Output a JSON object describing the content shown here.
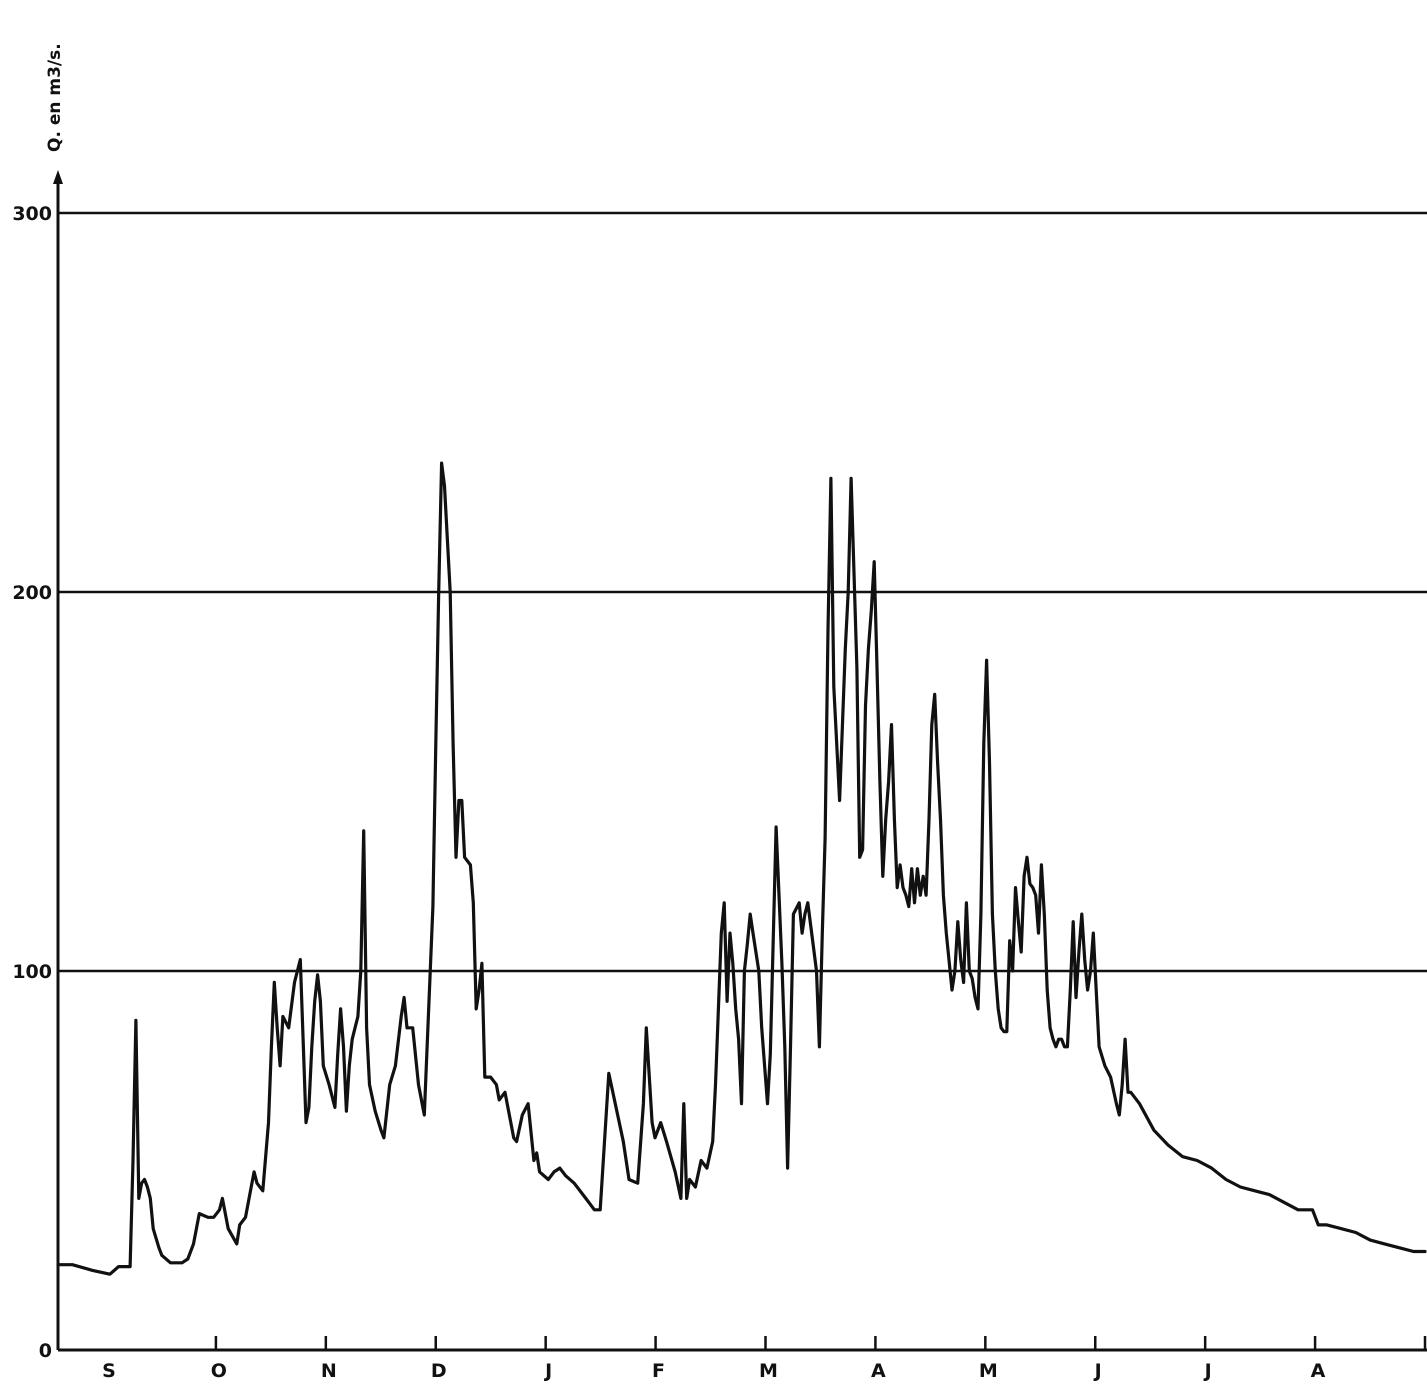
{
  "chart_data": {
    "type": "line",
    "title": "",
    "ylabel": "Q. en m3/s.",
    "xlabel": "",
    "ylim": [
      0,
      300
    ],
    "yticks": [
      0,
      100,
      200,
      300
    ],
    "grid": true,
    "months": [
      "S",
      "O",
      "N",
      "D",
      "J",
      "F",
      "M",
      "A",
      "M",
      "J",
      "J",
      "A"
    ],
    "x_unit": "day of hydrological year (from 1 September)",
    "series": [
      {
        "name": "",
        "color": "#111111",
        "points": [
          [
            0,
            22.5
          ],
          [
            5,
            22.5
          ],
          [
            12,
            21
          ],
          [
            18,
            20
          ],
          [
            21,
            22
          ],
          [
            23,
            22
          ],
          [
            25,
            22
          ],
          [
            26,
            50
          ],
          [
            27,
            87
          ],
          [
            28,
            40
          ],
          [
            29,
            44
          ],
          [
            30,
            45
          ],
          [
            31,
            43
          ],
          [
            32,
            40
          ],
          [
            33,
            32
          ],
          [
            35,
            27
          ],
          [
            36,
            25
          ],
          [
            39,
            23
          ],
          [
            43,
            23
          ],
          [
            45,
            24
          ],
          [
            47,
            28
          ],
          [
            49,
            36
          ],
          [
            52,
            35
          ],
          [
            54,
            35
          ],
          [
            56,
            37
          ],
          [
            57,
            40
          ],
          [
            59,
            32
          ],
          [
            62,
            28
          ],
          [
            63,
            33
          ],
          [
            65,
            35
          ],
          [
            67,
            43
          ],
          [
            68,
            47
          ],
          [
            69,
            44
          ],
          [
            71,
            42
          ],
          [
            73,
            60
          ],
          [
            74,
            80
          ],
          [
            75,
            97
          ],
          [
            76,
            85
          ],
          [
            77,
            75
          ],
          [
            78,
            88
          ],
          [
            80,
            85
          ],
          [
            82,
            97
          ],
          [
            84,
            103
          ],
          [
            85,
            82
          ],
          [
            86,
            60
          ],
          [
            87,
            64
          ],
          [
            88,
            80
          ],
          [
            89,
            92
          ],
          [
            90,
            99
          ],
          [
            91,
            92
          ],
          [
            92,
            75
          ],
          [
            94,
            70
          ],
          [
            96,
            64
          ],
          [
            97,
            78
          ],
          [
            98,
            90
          ],
          [
            99,
            80
          ],
          [
            100,
            63
          ],
          [
            101,
            75
          ],
          [
            102,
            82
          ],
          [
            104,
            88
          ],
          [
            105,
            100
          ],
          [
            106,
            137
          ],
          [
            107,
            85
          ],
          [
            108,
            70
          ],
          [
            110,
            63
          ],
          [
            112,
            58
          ],
          [
            113,
            56
          ],
          [
            115,
            70
          ],
          [
            117,
            75
          ],
          [
            119,
            88
          ],
          [
            120,
            93
          ],
          [
            121,
            85
          ],
          [
            123,
            85
          ],
          [
            125,
            70
          ],
          [
            127,
            62
          ],
          [
            130,
            117
          ],
          [
            131,
            160
          ],
          [
            132,
            200
          ],
          [
            133,
            234
          ],
          [
            134,
            228
          ],
          [
            136,
            200
          ],
          [
            137,
            160
          ],
          [
            138,
            130
          ],
          [
            139,
            145
          ],
          [
            140,
            145
          ],
          [
            141,
            130
          ],
          [
            143,
            128
          ],
          [
            144,
            118
          ],
          [
            145,
            90
          ],
          [
            146,
            95
          ],
          [
            147,
            102
          ],
          [
            148,
            72
          ],
          [
            150,
            72
          ],
          [
            152,
            70
          ],
          [
            153,
            66
          ],
          [
            155,
            68
          ],
          [
            157,
            60
          ],
          [
            158,
            56
          ],
          [
            159,
            55
          ],
          [
            161,
            62
          ],
          [
            163,
            65
          ],
          [
            165,
            50
          ],
          [
            166,
            52
          ],
          [
            167,
            47
          ],
          [
            170,
            45
          ],
          [
            172,
            47
          ],
          [
            174,
            48
          ],
          [
            176,
            46
          ],
          [
            179,
            44
          ],
          [
            183,
            40
          ],
          [
            186,
            37
          ],
          [
            188,
            37
          ],
          [
            191,
            73
          ],
          [
            196,
            55
          ],
          [
            198,
            45
          ],
          [
            201,
            44
          ],
          [
            203,
            65
          ],
          [
            204,
            85
          ],
          [
            206,
            60
          ],
          [
            207,
            56
          ],
          [
            209,
            60
          ],
          [
            211,
            55
          ],
          [
            214,
            47
          ],
          [
            216,
            40
          ],
          [
            217,
            65
          ],
          [
            218,
            40
          ],
          [
            219,
            45
          ],
          [
            221,
            43
          ],
          [
            223,
            50
          ],
          [
            225,
            48
          ],
          [
            227,
            55
          ],
          [
            228,
            70
          ],
          [
            230,
            110
          ],
          [
            231,
            118
          ],
          [
            232,
            92
          ],
          [
            233,
            110
          ],
          [
            234,
            102
          ],
          [
            235,
            90
          ],
          [
            236,
            82
          ],
          [
            237,
            65
          ],
          [
            238,
            100
          ],
          [
            239,
            107
          ],
          [
            240,
            115
          ],
          [
            241,
            110
          ],
          [
            243,
            100
          ],
          [
            244,
            85
          ],
          [
            246,
            65
          ],
          [
            247,
            78
          ],
          [
            249,
            138
          ],
          [
            251,
            102
          ],
          [
            252,
            80
          ],
          [
            253,
            48
          ],
          [
            254,
            80
          ],
          [
            255,
            115
          ],
          [
            257,
            118
          ],
          [
            258,
            110
          ],
          [
            259,
            115
          ],
          [
            260,
            118
          ],
          [
            261,
            112
          ],
          [
            263,
            100
          ],
          [
            264,
            80
          ],
          [
            265,
            110
          ],
          [
            266,
            135
          ],
          [
            267,
            190
          ],
          [
            268,
            230
          ],
          [
            269,
            175
          ],
          [
            270,
            160
          ],
          [
            271,
            145
          ],
          [
            273,
            185
          ],
          [
            274,
            200
          ],
          [
            275,
            230
          ],
          [
            277,
            180
          ],
          [
            278,
            130
          ],
          [
            279,
            132
          ],
          [
            280,
            170
          ],
          [
            281,
            185
          ],
          [
            282,
            195
          ],
          [
            283,
            208
          ],
          [
            284,
            180
          ],
          [
            285,
            150
          ],
          [
            286,
            125
          ],
          [
            287,
            140
          ],
          [
            288,
            150
          ],
          [
            289,
            165
          ],
          [
            290,
            140
          ],
          [
            291,
            122
          ],
          [
            292,
            128
          ],
          [
            293,
            122
          ],
          [
            294,
            120
          ],
          [
            295,
            117
          ],
          [
            296,
            127
          ],
          [
            297,
            118
          ],
          [
            298,
            127
          ],
          [
            299,
            120
          ],
          [
            300,
            125
          ],
          [
            301,
            120
          ],
          [
            302,
            140
          ],
          [
            303,
            165
          ],
          [
            304,
            173
          ],
          [
            305,
            155
          ],
          [
            306,
            140
          ],
          [
            307,
            120
          ],
          [
            308,
            110
          ],
          [
            310,
            95
          ],
          [
            311,
            100
          ],
          [
            312,
            113
          ],
          [
            313,
            103
          ],
          [
            314,
            97
          ],
          [
            315,
            118
          ],
          [
            316,
            100
          ],
          [
            317,
            98
          ],
          [
            318,
            93
          ],
          [
            319,
            90
          ],
          [
            320,
            115
          ],
          [
            321,
            160
          ],
          [
            322,
            182
          ],
          [
            323,
            155
          ],
          [
            324,
            115
          ],
          [
            325,
            100
          ],
          [
            326,
            90
          ],
          [
            327,
            85
          ],
          [
            328,
            84
          ],
          [
            329,
            84
          ],
          [
            330,
            108
          ],
          [
            331,
            100
          ],
          [
            332,
            122
          ],
          [
            333,
            113
          ],
          [
            334,
            105
          ],
          [
            335,
            125
          ],
          [
            336,
            130
          ],
          [
            337,
            123
          ],
          [
            338,
            122
          ],
          [
            339,
            120
          ],
          [
            340,
            110
          ],
          [
            341,
            128
          ],
          [
            342,
            115
          ],
          [
            343,
            95
          ],
          [
            344,
            85
          ],
          [
            345,
            82
          ],
          [
            346,
            80
          ],
          [
            347,
            82
          ],
          [
            348,
            82
          ],
          [
            349,
            80
          ],
          [
            350,
            80
          ],
          [
            351,
            95
          ],
          [
            352,
            113
          ],
          [
            353,
            93
          ],
          [
            354,
            105
          ],
          [
            355,
            115
          ],
          [
            356,
            103
          ],
          [
            357,
            95
          ],
          [
            358,
            100
          ],
          [
            359,
            110
          ],
          [
            360,
            95
          ],
          [
            361,
            80
          ],
          [
            363,
            75
          ],
          [
            365,
            72
          ],
          [
            367,
            65
          ],
          [
            368,
            62
          ],
          [
            369,
            70
          ],
          [
            370,
            82
          ],
          [
            371,
            68
          ],
          [
            372,
            68
          ],
          [
            375,
            65
          ],
          [
            380,
            58
          ],
          [
            385,
            54
          ],
          [
            390,
            51
          ],
          [
            395,
            50
          ],
          [
            400,
            48
          ],
          [
            405,
            45
          ],
          [
            410,
            43
          ],
          [
            415,
            42
          ],
          [
            420,
            41
          ],
          [
            425,
            39
          ],
          [
            430,
            37
          ],
          [
            435,
            37
          ],
          [
            437,
            33
          ],
          [
            440,
            33
          ],
          [
            445,
            32
          ],
          [
            450,
            31
          ],
          [
            455,
            29
          ],
          [
            460,
            28
          ],
          [
            465,
            27
          ],
          [
            470,
            26
          ],
          [
            474,
            26
          ]
        ]
      }
    ]
  }
}
